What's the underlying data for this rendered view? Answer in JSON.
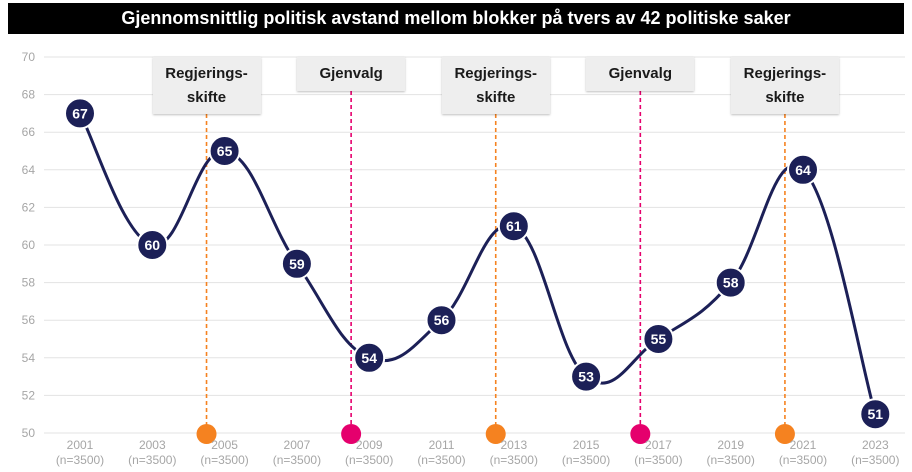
{
  "chart_data": {
    "type": "line",
    "title": "Gjennomsnittlig politisk avstand mellom blokker på tvers av 42 politiske saker",
    "categories": [
      "2001",
      "2003",
      "2005",
      "2007",
      "2009",
      "2011",
      "2013",
      "2015",
      "2017",
      "2019",
      "2021",
      "2023"
    ],
    "category_sublabels": [
      "(n=3500)",
      "(n=3500)",
      "(n=3500)",
      "(n=3500)",
      "(n=3500)",
      "(n=3500)",
      "(n=3500)",
      "(n=3500)",
      "(n=3500)",
      "(n=3500)",
      "(n=3500)",
      "(n=3500)"
    ],
    "values": [
      67,
      60,
      65,
      59,
      54,
      56,
      61,
      53,
      55,
      58,
      64,
      51
    ],
    "ylim": [
      50,
      70
    ],
    "yticks": [
      "50",
      "52",
      "54",
      "56",
      "58",
      "60",
      "62",
      "64",
      "66",
      "68",
      "70"
    ],
    "grid": true,
    "annotations": [
      {
        "label": "Regjerings-\nskifte",
        "x": 2004.5,
        "type": "regjeringsskifte"
      },
      {
        "label": "Gjenvalg",
        "x": 2008.5,
        "type": "gjenvalg"
      },
      {
        "label": "Regjerings-\nskifte",
        "x": 2012.5,
        "type": "regjeringsskifte"
      },
      {
        "label": "Gjenvalg",
        "x": 2016.5,
        "type": "gjenvalg"
      },
      {
        "label": "Regjerings-\nskifte",
        "x": 2020.5,
        "type": "regjeringsskifte"
      }
    ],
    "colors": {
      "line": "#1c2057",
      "marker": "#1c2057",
      "regjeringsskifte": "#f58220",
      "gjenvalg": "#e5006d",
      "grid": "#e3e3e3",
      "axis_text": "#a6a6a6"
    }
  }
}
